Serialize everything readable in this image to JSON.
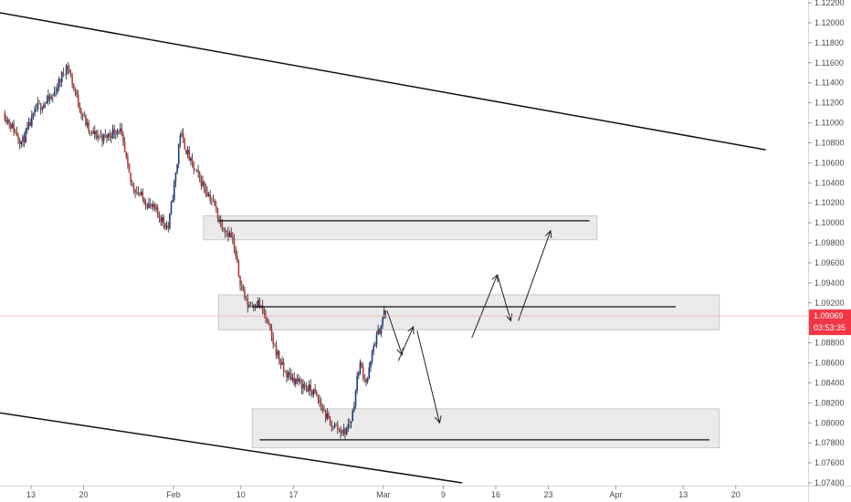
{
  "chart_data": {
    "type": "candlestick",
    "symbol_pair_hint": "",
    "title": "",
    "ylim": [
      1.074,
      1.122
    ],
    "y_ticks": [
      "1.12200",
      "1.12000",
      "1.11800",
      "1.11600",
      "1.11400",
      "1.11200",
      "1.11000",
      "1.10800",
      "1.10600",
      "1.10400",
      "1.10200",
      "1.10000",
      "1.09800",
      "1.09600",
      "1.09400",
      "1.09200",
      "1.09000",
      "1.08800",
      "1.08600",
      "1.08400",
      "1.08200",
      "1.08000",
      "1.07800",
      "1.07600",
      "1.07400"
    ],
    "x_ticks": [
      "13",
      "20",
      "Feb",
      "10",
      "17",
      "Mar",
      "9",
      "16",
      "23",
      "Apr",
      "13",
      "20"
    ],
    "x_tick_day_offsets": [
      0,
      7,
      19,
      28,
      35,
      47,
      55,
      62,
      69,
      78,
      87,
      94
    ],
    "bars_per_day": 5,
    "price_path": [
      {
        "day": -3.5,
        "price": 1.111
      },
      {
        "day": -1.0,
        "price": 1.108
      },
      {
        "day": 1.0,
        "price": 1.1115
      },
      {
        "day": 3.0,
        "price": 1.1125
      },
      {
        "day": 5.0,
        "price": 1.1158
      },
      {
        "day": 6.5,
        "price": 1.112
      },
      {
        "day": 8.0,
        "price": 1.109
      },
      {
        "day": 10.0,
        "price": 1.1085
      },
      {
        "day": 12.0,
        "price": 1.1095
      },
      {
        "day": 13.5,
        "price": 1.104
      },
      {
        "day": 15.0,
        "price": 1.1025
      },
      {
        "day": 17.0,
        "price": 1.101
      },
      {
        "day": 18.5,
        "price": 1.0995
      },
      {
        "day": 19.8,
        "price": 1.1065
      },
      {
        "day": 20.0,
        "price": 1.1092
      },
      {
        "day": 21.5,
        "price": 1.106
      },
      {
        "day": 23.0,
        "price": 1.104
      },
      {
        "day": 24.5,
        "price": 1.102
      },
      {
        "day": 25.5,
        "price": 1.1
      },
      {
        "day": 27.0,
        "price": 1.0985
      },
      {
        "day": 28.0,
        "price": 1.0945
      },
      {
        "day": 29.0,
        "price": 1.0918
      },
      {
        "day": 30.5,
        "price": 1.092
      },
      {
        "day": 31.5,
        "price": 1.0905
      },
      {
        "day": 32.5,
        "price": 1.088
      },
      {
        "day": 34.0,
        "price": 1.085
      },
      {
        "day": 36.0,
        "price": 1.084
      },
      {
        "day": 38.0,
        "price": 1.083
      },
      {
        "day": 40.0,
        "price": 1.08
      },
      {
        "day": 42.0,
        "price": 1.079
      },
      {
        "day": 43.0,
        "price": 1.0805
      },
      {
        "day": 44.0,
        "price": 1.086
      },
      {
        "day": 45.0,
        "price": 1.084
      },
      {
        "day": 46.0,
        "price": 1.088
      },
      {
        "day": 46.8,
        "price": 1.0895
      },
      {
        "day": 47.3,
        "price": 1.091
      }
    ],
    "trend_lines": [
      {
        "name": "upper-channel",
        "from": {
          "day": -4.2,
          "price": 1.121
        },
        "to": {
          "day": 98.0,
          "price": 1.1073
        },
        "color": "#111111",
        "width": 1.5
      },
      {
        "name": "lower-channel",
        "from": {
          "day": -4.2,
          "price": 1.081
        },
        "to": {
          "day": 57.5,
          "price": 1.074
        },
        "color": "#111111",
        "width": 1.5
      }
    ],
    "zones": [
      {
        "name": "resistance-zone",
        "day_start": 23.0,
        "day_end": 75.5,
        "price_top": 1.1007,
        "price_bottom": 1.0983
      },
      {
        "name": "pivot-zone",
        "day_start": 25.0,
        "day_end": 91.8,
        "price_top": 1.0928,
        "price_bottom": 1.0893
      },
      {
        "name": "support-zone",
        "day_start": 29.5,
        "day_end": 91.8,
        "price_top": 1.0814,
        "price_bottom": 1.0775
      }
    ],
    "horizontal_lines": [
      {
        "name": "resistance-level",
        "price": 1.1002,
        "day_start": 25.0,
        "day_end": 74.5
      },
      {
        "name": "pivot-level",
        "price": 1.0916,
        "day_start": 29.5,
        "day_end": 86.0
      },
      {
        "name": "support-level",
        "price": 1.0783,
        "day_start": 30.5,
        "day_end": 90.5
      }
    ],
    "projection_arrows": [
      {
        "name": "projection-arrow-1",
        "from": {
          "day": 47.5,
          "price": 1.0912
        },
        "to": {
          "day": 49.5,
          "price": 1.0868
        }
      },
      {
        "name": "projection-arrow-2",
        "from": {
          "day": 49.0,
          "price": 1.0862
        },
        "to": {
          "day": 51.0,
          "price": 1.0896
        }
      },
      {
        "name": "projection-arrow-3",
        "from": {
          "day": 51.5,
          "price": 1.0892
        },
        "to": {
          "day": 54.5,
          "price": 1.08
        }
      },
      {
        "name": "projection-arrow-4",
        "from": {
          "day": 58.8,
          "price": 1.0885
        },
        "to": {
          "day": 62.2,
          "price": 1.0948
        }
      },
      {
        "name": "projection-arrow-5",
        "from": {
          "day": 62.2,
          "price": 1.0948
        },
        "to": {
          "day": 64.0,
          "price": 1.0902
        }
      },
      {
        "name": "projection-arrow-6",
        "from": {
          "day": 65.0,
          "price": 1.0902
        },
        "to": {
          "day": 69.3,
          "price": 1.0992
        }
      }
    ],
    "current_price": {
      "value": "1.09069",
      "countdown": "03:53:35",
      "price": 1.09069,
      "color": "#f23645"
    },
    "colors": {
      "up": "#1e3a8a",
      "down": "#c0392b",
      "neutral": "#999999",
      "wick": "#222222",
      "zone_fill": "#e6e6e6",
      "zone_stroke": "#c8c8c8",
      "price_line": "#f6a9a9",
      "axis_text": "#4a4a4a"
    }
  }
}
